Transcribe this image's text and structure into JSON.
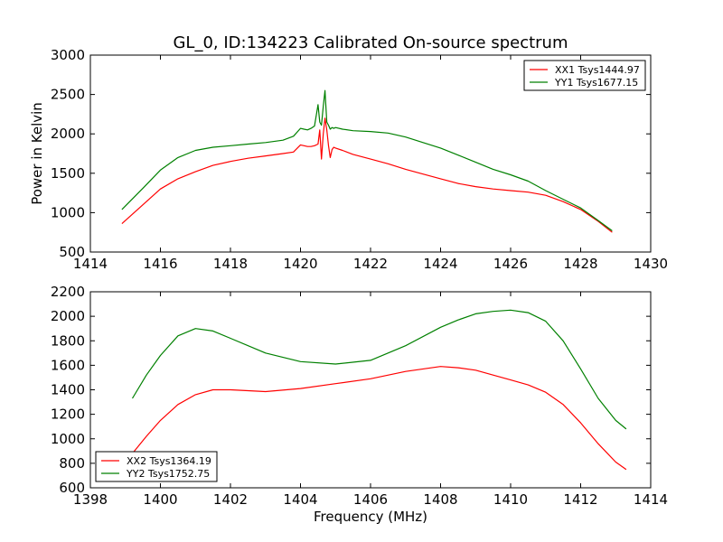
{
  "figure_title": "GL_0, ID:134223 Calibrated On-source spectrum",
  "chart_data": [
    {
      "type": "line",
      "title": "GL_0, ID:134223 Calibrated On-source spectrum",
      "xlabel": "",
      "ylabel": "Power in Kelvin",
      "xlim": [
        1414,
        1430
      ],
      "ylim": [
        500,
        3000
      ],
      "xticks": [
        "1414",
        "1416",
        "1418",
        "1420",
        "1422",
        "1424",
        "1426",
        "1428",
        "1430"
      ],
      "yticks": [
        "500",
        "1000",
        "1500",
        "2000",
        "2500",
        "3000"
      ],
      "grid": false,
      "legend_position": "top-right",
      "colors": {
        "XX1 Tsys1444.97": "#ff0000",
        "YY1 Tsys1677.15": "#008000"
      },
      "series": [
        {
          "name": "XX1 Tsys1444.97",
          "color": "#ff0000",
          "x": [
            1414.9,
            1415.5,
            1416.0,
            1416.5,
            1417.0,
            1417.5,
            1418.0,
            1418.5,
            1419.0,
            1419.5,
            1419.8,
            1420.0,
            1420.1,
            1420.2,
            1420.3,
            1420.4,
            1420.5,
            1420.55,
            1420.6,
            1420.65,
            1420.7,
            1420.75,
            1420.8,
            1420.85,
            1420.9,
            1420.95,
            1421.0,
            1421.2,
            1421.5,
            1422.0,
            1422.5,
            1423.0,
            1423.5,
            1424.0,
            1424.5,
            1425.0,
            1425.5,
            1426.0,
            1426.5,
            1427.0,
            1427.5,
            1428.0,
            1428.5,
            1428.9
          ],
          "y": [
            860,
            1100,
            1300,
            1430,
            1520,
            1600,
            1650,
            1690,
            1720,
            1750,
            1770,
            1860,
            1850,
            1840,
            1840,
            1850,
            1870,
            2050,
            1680,
            2000,
            2200,
            2050,
            1850,
            1700,
            1800,
            1830,
            1820,
            1790,
            1740,
            1680,
            1620,
            1550,
            1490,
            1430,
            1370,
            1330,
            1300,
            1280,
            1260,
            1220,
            1140,
            1040,
            890,
            750
          ]
        },
        {
          "name": "YY1 Tsys1677.15",
          "color": "#008000",
          "x": [
            1414.9,
            1415.5,
            1416.0,
            1416.5,
            1417.0,
            1417.5,
            1418.0,
            1418.5,
            1419.0,
            1419.5,
            1419.8,
            1420.0,
            1420.1,
            1420.2,
            1420.3,
            1420.4,
            1420.5,
            1420.55,
            1420.6,
            1420.65,
            1420.7,
            1420.75,
            1420.8,
            1420.85,
            1420.9,
            1420.95,
            1421.0,
            1421.2,
            1421.5,
            1422.0,
            1422.5,
            1423.0,
            1423.5,
            1424.0,
            1424.5,
            1425.0,
            1425.5,
            1426.0,
            1426.5,
            1427.0,
            1427.5,
            1428.0,
            1428.5,
            1428.9
          ],
          "y": [
            1040,
            1310,
            1540,
            1700,
            1790,
            1830,
            1850,
            1870,
            1890,
            1920,
            1970,
            2070,
            2060,
            2050,
            2070,
            2100,
            2370,
            2150,
            2110,
            2350,
            2550,
            2150,
            2110,
            2060,
            2080,
            2070,
            2080,
            2060,
            2040,
            2030,
            2010,
            1960,
            1890,
            1820,
            1730,
            1640,
            1550,
            1480,
            1400,
            1280,
            1170,
            1060,
            900,
            770
          ]
        }
      ]
    },
    {
      "type": "line",
      "title": "",
      "xlabel": "Frequency (MHz)",
      "ylabel": "",
      "xlim": [
        1398,
        1414
      ],
      "ylim": [
        600,
        2200
      ],
      "xticks": [
        "1398",
        "1400",
        "1402",
        "1404",
        "1406",
        "1408",
        "1410",
        "1412",
        "1414"
      ],
      "yticks": [
        "600",
        "800",
        "1000",
        "1200",
        "1400",
        "1600",
        "1800",
        "2000",
        "2200"
      ],
      "grid": false,
      "legend_position": "bottom-left",
      "colors": {
        "XX2 Tsys1364.19": "#ff0000",
        "YY2 Tsys1752.75": "#008000"
      },
      "series": [
        {
          "name": "XX2 Tsys1364.19",
          "color": "#ff0000",
          "x": [
            1399.2,
            1399.6,
            1400.0,
            1400.5,
            1401.0,
            1401.5,
            1402.0,
            1403.0,
            1404.0,
            1405.0,
            1406.0,
            1407.0,
            1408.0,
            1408.5,
            1409.0,
            1409.5,
            1410.0,
            1410.5,
            1411.0,
            1411.5,
            1412.0,
            1412.5,
            1413.0,
            1413.3
          ],
          "y": [
            880,
            1020,
            1150,
            1280,
            1360,
            1400,
            1400,
            1385,
            1410,
            1450,
            1490,
            1550,
            1590,
            1580,
            1560,
            1520,
            1480,
            1440,
            1380,
            1280,
            1130,
            960,
            810,
            750
          ]
        },
        {
          "name": "YY2 Tsys1752.75",
          "color": "#008000",
          "x": [
            1399.2,
            1399.6,
            1400.0,
            1400.5,
            1401.0,
            1401.5,
            1402.0,
            1403.0,
            1404.0,
            1405.0,
            1406.0,
            1407.0,
            1408.0,
            1408.5,
            1409.0,
            1409.5,
            1410.0,
            1410.5,
            1411.0,
            1411.5,
            1412.0,
            1412.5,
            1413.0,
            1413.3
          ],
          "y": [
            1330,
            1520,
            1680,
            1840,
            1900,
            1880,
            1820,
            1700,
            1630,
            1610,
            1640,
            1760,
            1910,
            1970,
            2020,
            2040,
            2050,
            2030,
            1960,
            1800,
            1570,
            1330,
            1150,
            1080
          ]
        }
      ]
    }
  ]
}
